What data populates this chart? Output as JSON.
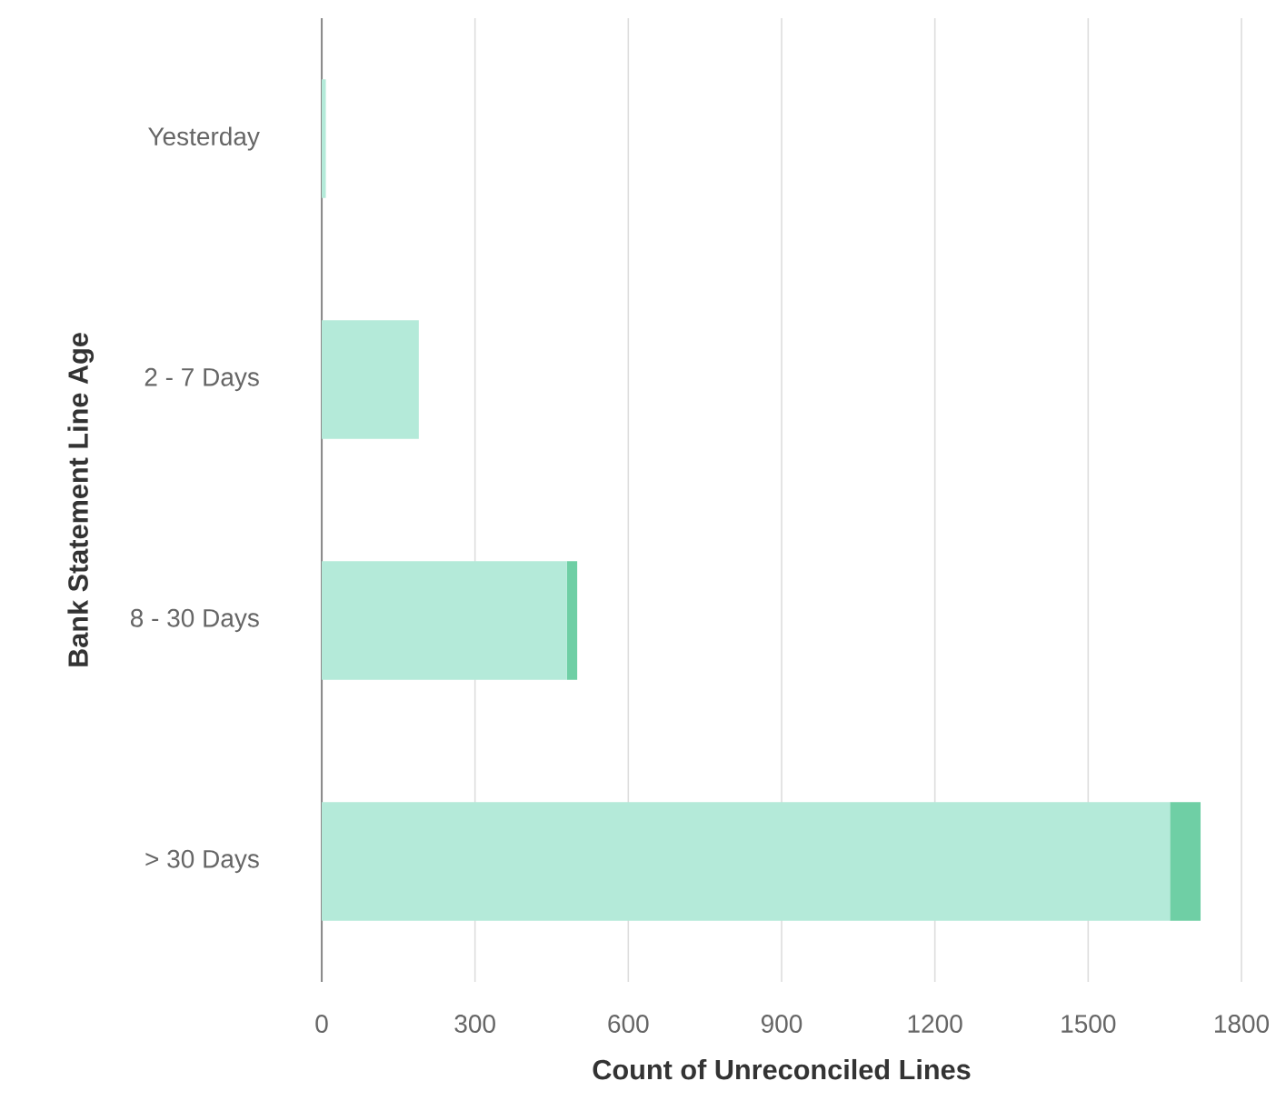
{
  "chart_data": {
    "type": "bar",
    "orientation": "horizontal",
    "stacked": true,
    "xlabel": "Count of Unreconciled Lines",
    "ylabel": "Bank Statement Line Age",
    "categories": [
      "Yesterday",
      "2 - 7 Days",
      "8 - 30 Days",
      "> 30 Days"
    ],
    "series": [
      {
        "color": "#b4ead9",
        "values": [
          8,
          190,
          480,
          1660
        ]
      },
      {
        "color": "#6fcfa5",
        "values": [
          0,
          0,
          20,
          60
        ]
      }
    ],
    "xlim": [
      0,
      1800
    ],
    "xticks": [
      0,
      300,
      600,
      900,
      1200,
      1500,
      1800
    ],
    "grid": "x"
  }
}
